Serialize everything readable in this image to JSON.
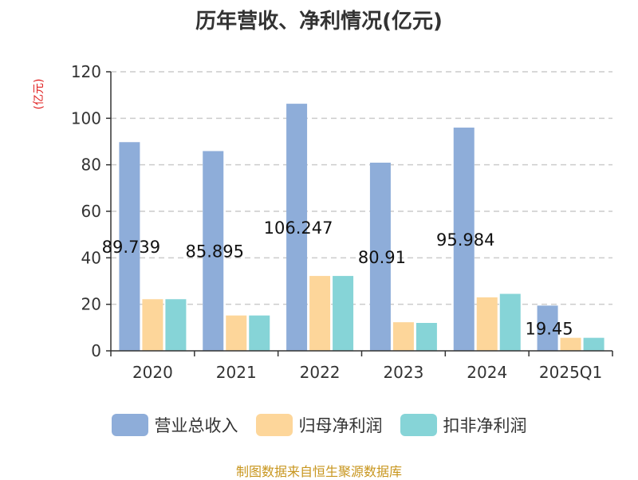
{
  "title": "历年营收、净利情况(亿元)",
  "source": "制图数据来自恒生聚源数据库",
  "colors": {
    "revenue": "#8eadd9",
    "net_profit": "#fdd69a",
    "deducted_net_profit": "#86d4d7",
    "grid": "#cccccc",
    "axis": "#333333",
    "ylabel": "#e02020"
  },
  "chart_data": {
    "type": "bar",
    "title": "历年营收、净利情况(亿元)",
    "ylabel": "(亿元)",
    "xlabel": "",
    "categories": [
      "2020",
      "2021",
      "2022",
      "2023",
      "2024",
      "2025Q1"
    ],
    "ylim": [
      0,
      120
    ],
    "yticks": [
      "0",
      "20",
      "40",
      "60",
      "80",
      "100",
      "120"
    ],
    "grid": true,
    "legend_position": "bottom",
    "series": [
      {
        "name": "营业总收入",
        "values": [
          89.739,
          85.895,
          106.247,
          80.91,
          95.984,
          19.45
        ],
        "labels": [
          "89.739",
          "85.895",
          "106.247",
          "80.91",
          "95.984",
          "19.45"
        ]
      },
      {
        "name": "归母净利润",
        "values": [
          22.2,
          15.2,
          32.2,
          12.3,
          23.0,
          5.6
        ]
      },
      {
        "name": "扣非净利润",
        "values": [
          22.2,
          15.2,
          32.2,
          12.0,
          24.5,
          5.6
        ]
      }
    ]
  }
}
